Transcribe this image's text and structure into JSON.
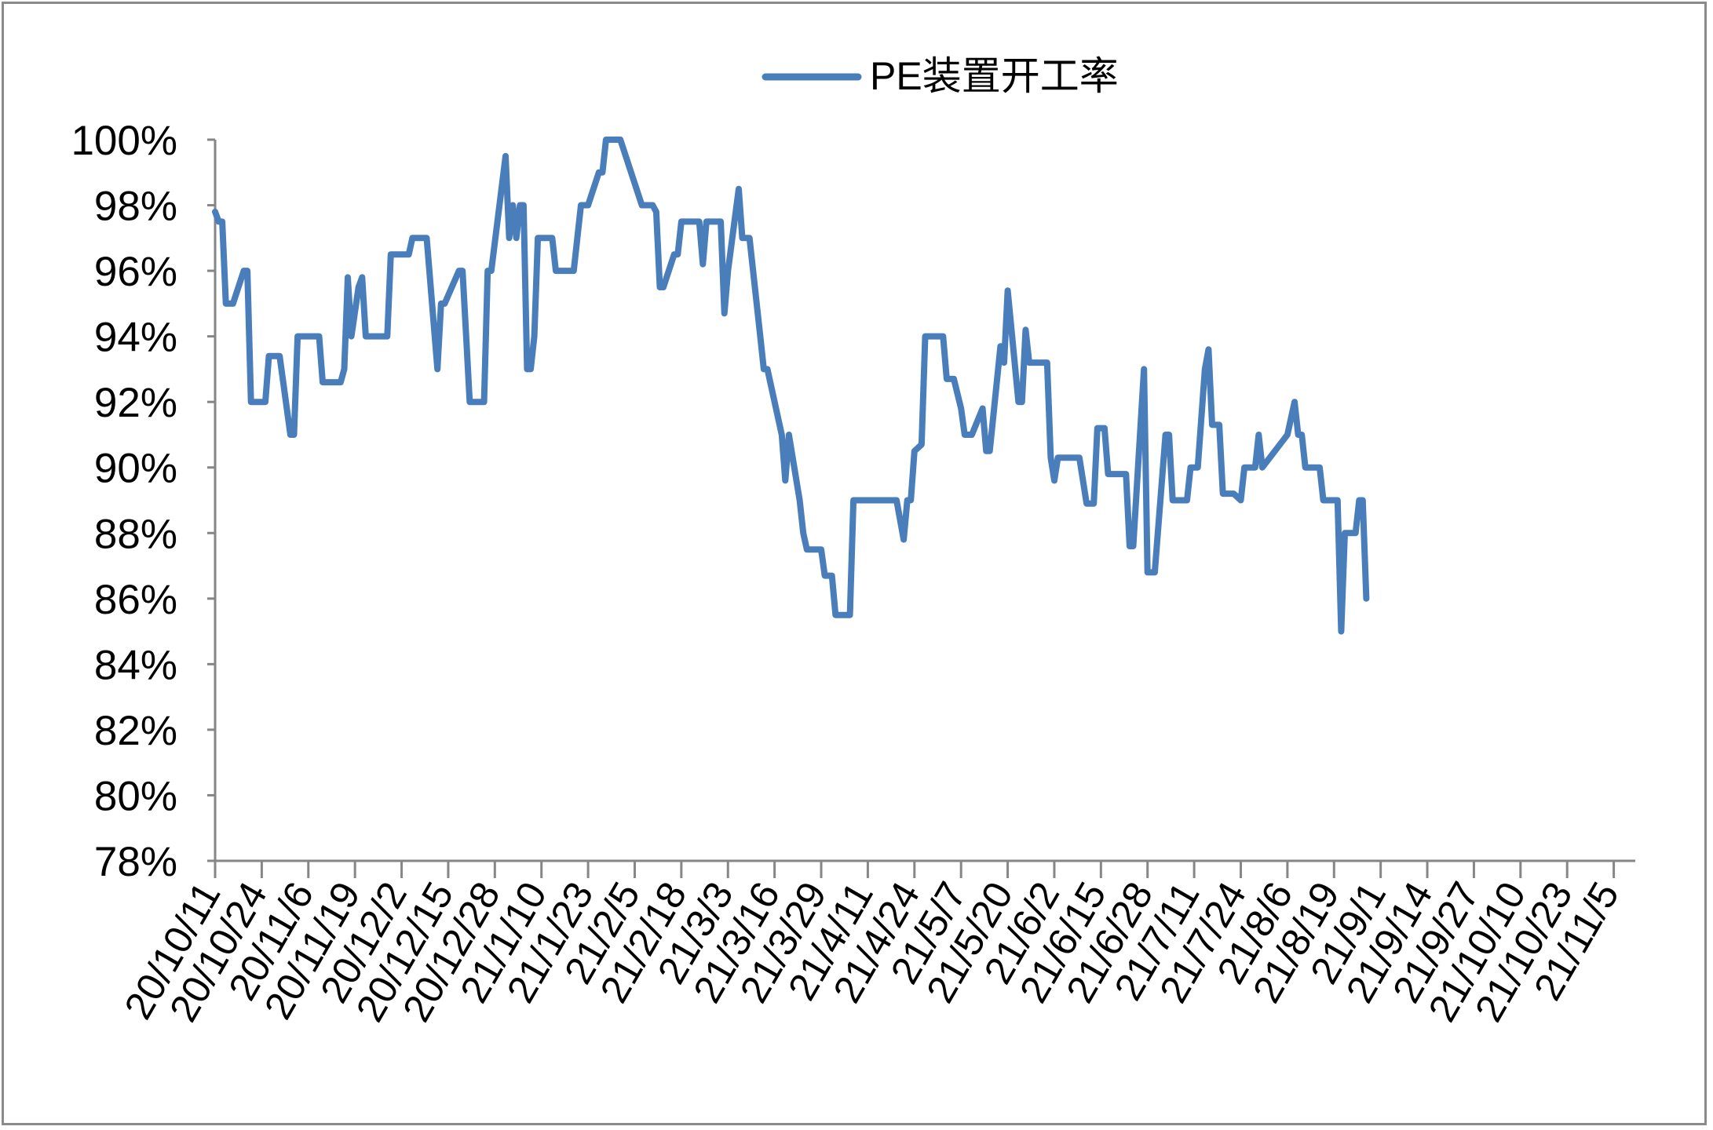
{
  "chart_data": {
    "type": "line",
    "title": "",
    "xlabel": "",
    "ylabel": "",
    "ylim": [
      0.78,
      1.0
    ],
    "yticks": [
      0.78,
      0.8,
      0.82,
      0.84,
      0.86,
      0.88,
      0.9,
      0.92,
      0.94,
      0.96,
      0.98,
      1.0
    ],
    "ytick_labels": [
      "78%",
      "80%",
      "82%",
      "84%",
      "86%",
      "88%",
      "90%",
      "92%",
      "94%",
      "96%",
      "98%",
      "100%"
    ],
    "x_range": [
      "2020-10-11",
      "2021-11-11"
    ],
    "xticks": [
      "2020-10-11",
      "2020-10-24",
      "2020-11-06",
      "2020-11-19",
      "2020-12-02",
      "2020-12-15",
      "2020-12-28",
      "2021-01-10",
      "2021-01-23",
      "2021-02-05",
      "2021-02-18",
      "2021-03-03",
      "2021-03-16",
      "2021-03-29",
      "2021-04-11",
      "2021-04-24",
      "2021-05-07",
      "2021-05-20",
      "2021-06-02",
      "2021-06-15",
      "2021-06-28",
      "2021-07-11",
      "2021-07-24",
      "2021-08-06",
      "2021-08-19",
      "2021-09-01",
      "2021-09-14",
      "2021-09-27",
      "2021-10-10",
      "2021-10-23",
      "2021-11-05"
    ],
    "xtick_labels": [
      "20/10/11",
      "20/10/24",
      "20/11/6",
      "20/11/19",
      "20/12/2",
      "20/12/15",
      "20/12/28",
      "21/1/10",
      "21/1/23",
      "21/2/5",
      "21/2/18",
      "21/3/3",
      "21/3/16",
      "21/3/29",
      "21/4/11",
      "21/4/24",
      "21/5/7",
      "21/5/20",
      "21/6/2",
      "21/6/15",
      "21/6/28",
      "21/7/11",
      "21/7/24",
      "21/8/6",
      "21/8/19",
      "21/9/1",
      "21/9/14",
      "21/9/27",
      "21/10/10",
      "21/10/23",
      "21/11/5"
    ],
    "grid": false,
    "legend_position": "top",
    "series": [
      {
        "name": "PE装置开工率",
        "color": "#4a7ebb",
        "points": [
          [
            "2020-10-11",
            0.978
          ],
          [
            "2020-10-12",
            0.975
          ],
          [
            "2020-10-13",
            0.975
          ],
          [
            "2020-10-14",
            0.95
          ],
          [
            "2020-10-16",
            0.95
          ],
          [
            "2020-10-19",
            0.96
          ],
          [
            "2020-10-20",
            0.96
          ],
          [
            "2020-10-21",
            0.92
          ],
          [
            "2020-10-25",
            0.92
          ],
          [
            "2020-10-26",
            0.934
          ],
          [
            "2020-10-29",
            0.934
          ],
          [
            "2020-11-01",
            0.91
          ],
          [
            "2020-11-02",
            0.91
          ],
          [
            "2020-11-03",
            0.94
          ],
          [
            "2020-11-09",
            0.94
          ],
          [
            "2020-11-10",
            0.926
          ],
          [
            "2020-11-15",
            0.926
          ],
          [
            "2020-11-16",
            0.93
          ],
          [
            "2020-11-17",
            0.958
          ],
          [
            "2020-11-18",
            0.94
          ],
          [
            "2020-11-20",
            0.955
          ],
          [
            "2020-11-21",
            0.958
          ],
          [
            "2020-11-22",
            0.94
          ],
          [
            "2020-11-28",
            0.94
          ],
          [
            "2020-11-29",
            0.965
          ],
          [
            "2020-12-04",
            0.965
          ],
          [
            "2020-12-05",
            0.97
          ],
          [
            "2020-12-09",
            0.97
          ],
          [
            "2020-12-12",
            0.93
          ],
          [
            "2020-12-13",
            0.95
          ],
          [
            "2020-12-14",
            0.95
          ],
          [
            "2020-12-18",
            0.96
          ],
          [
            "2020-12-19",
            0.96
          ],
          [
            "2020-12-20",
            0.94
          ],
          [
            "2020-12-21",
            0.92
          ],
          [
            "2020-12-25",
            0.92
          ],
          [
            "2020-12-26",
            0.96
          ],
          [
            "2020-12-27",
            0.96
          ],
          [
            "2020-12-31",
            0.995
          ],
          [
            "2021-01-01",
            0.97
          ],
          [
            "2021-01-02",
            0.98
          ],
          [
            "2021-01-03",
            0.97
          ],
          [
            "2021-01-04",
            0.98
          ],
          [
            "2021-01-05",
            0.98
          ],
          [
            "2021-01-06",
            0.93
          ],
          [
            "2021-01-07",
            0.93
          ],
          [
            "2021-01-08",
            0.94
          ],
          [
            "2021-01-09",
            0.97
          ],
          [
            "2021-01-13",
            0.97
          ],
          [
            "2021-01-14",
            0.96
          ],
          [
            "2021-01-19",
            0.96
          ],
          [
            "2021-01-20",
            0.97
          ],
          [
            "2021-01-21",
            0.98
          ],
          [
            "2021-01-23",
            0.98
          ],
          [
            "2021-01-26",
            0.99
          ],
          [
            "2021-01-27",
            0.99
          ],
          [
            "2021-01-28",
            1.0
          ],
          [
            "2021-02-01",
            1.0
          ],
          [
            "2021-02-07",
            0.98
          ],
          [
            "2021-02-10",
            0.98
          ],
          [
            "2021-02-11",
            0.978
          ],
          [
            "2021-02-12",
            0.955
          ],
          [
            "2021-02-13",
            0.955
          ],
          [
            "2021-02-16",
            0.965
          ],
          [
            "2021-02-17",
            0.965
          ],
          [
            "2021-02-18",
            0.975
          ],
          [
            "2021-02-23",
            0.975
          ],
          [
            "2021-02-24",
            0.962
          ],
          [
            "2021-02-25",
            0.975
          ],
          [
            "2021-03-01",
            0.975
          ],
          [
            "2021-03-02",
            0.947
          ],
          [
            "2021-03-03",
            0.96
          ],
          [
            "2021-03-06",
            0.985
          ],
          [
            "2021-03-07",
            0.97
          ],
          [
            "2021-03-09",
            0.97
          ],
          [
            "2021-03-12",
            0.94
          ],
          [
            "2021-03-13",
            0.93
          ],
          [
            "2021-03-14",
            0.93
          ],
          [
            "2021-03-18",
            0.91
          ],
          [
            "2021-03-19",
            0.896
          ],
          [
            "2021-03-20",
            0.91
          ],
          [
            "2021-03-23",
            0.89
          ],
          [
            "2021-03-24",
            0.88
          ],
          [
            "2021-03-25",
            0.875
          ],
          [
            "2021-03-29",
            0.875
          ],
          [
            "2021-03-30",
            0.867
          ],
          [
            "2021-04-01",
            0.867
          ],
          [
            "2021-04-02",
            0.855
          ],
          [
            "2021-04-06",
            0.855
          ],
          [
            "2021-04-07",
            0.89
          ],
          [
            "2021-04-19",
            0.89
          ],
          [
            "2021-04-21",
            0.878
          ],
          [
            "2021-04-22",
            0.89
          ],
          [
            "2021-04-23",
            0.89
          ],
          [
            "2021-04-24",
            0.905
          ],
          [
            "2021-04-26",
            0.907
          ],
          [
            "2021-04-27",
            0.94
          ],
          [
            "2021-05-02",
            0.94
          ],
          [
            "2021-05-03",
            0.927
          ],
          [
            "2021-05-05",
            0.927
          ],
          [
            "2021-05-07",
            0.918
          ],
          [
            "2021-05-08",
            0.91
          ],
          [
            "2021-05-10",
            0.91
          ],
          [
            "2021-05-13",
            0.918
          ],
          [
            "2021-05-14",
            0.905
          ],
          [
            "2021-05-15",
            0.905
          ],
          [
            "2021-05-18",
            0.937
          ],
          [
            "2021-05-19",
            0.932
          ],
          [
            "2021-05-20",
            0.954
          ],
          [
            "2021-05-23",
            0.92
          ],
          [
            "2021-05-24",
            0.92
          ],
          [
            "2021-05-25",
            0.942
          ],
          [
            "2021-05-26",
            0.932
          ],
          [
            "2021-05-31",
            0.932
          ],
          [
            "2021-06-01",
            0.903
          ],
          [
            "2021-06-02",
            0.896
          ],
          [
            "2021-06-03",
            0.903
          ],
          [
            "2021-06-09",
            0.903
          ],
          [
            "2021-06-11",
            0.889
          ],
          [
            "2021-06-13",
            0.889
          ],
          [
            "2021-06-14",
            0.912
          ],
          [
            "2021-06-16",
            0.912
          ],
          [
            "2021-06-17",
            0.898
          ],
          [
            "2021-06-22",
            0.898
          ],
          [
            "2021-06-23",
            0.876
          ],
          [
            "2021-06-24",
            0.876
          ],
          [
            "2021-06-27",
            0.93
          ],
          [
            "2021-06-28",
            0.868
          ],
          [
            "2021-06-30",
            0.868
          ],
          [
            "2021-07-03",
            0.91
          ],
          [
            "2021-07-04",
            0.91
          ],
          [
            "2021-07-05",
            0.89
          ],
          [
            "2021-07-09",
            0.89
          ],
          [
            "2021-07-10",
            0.9
          ],
          [
            "2021-07-12",
            0.9
          ],
          [
            "2021-07-14",
            0.93
          ],
          [
            "2021-07-15",
            0.936
          ],
          [
            "2021-07-16",
            0.913
          ],
          [
            "2021-07-18",
            0.913
          ],
          [
            "2021-07-19",
            0.892
          ],
          [
            "2021-07-22",
            0.892
          ],
          [
            "2021-07-24",
            0.89
          ],
          [
            "2021-07-25",
            0.9
          ],
          [
            "2021-07-28",
            0.9
          ],
          [
            "2021-07-29",
            0.91
          ],
          [
            "2021-07-30",
            0.9
          ],
          [
            "2021-08-06",
            0.91
          ],
          [
            "2021-08-08",
            0.92
          ],
          [
            "2021-08-09",
            0.91
          ],
          [
            "2021-08-10",
            0.91
          ],
          [
            "2021-08-11",
            0.9
          ],
          [
            "2021-08-15",
            0.9
          ],
          [
            "2021-08-16",
            0.89
          ],
          [
            "2021-08-20",
            0.89
          ],
          [
            "2021-08-21",
            0.85
          ],
          [
            "2021-08-22",
            0.88
          ],
          [
            "2021-08-25",
            0.88
          ],
          [
            "2021-08-26",
            0.89
          ],
          [
            "2021-08-27",
            0.89
          ],
          [
            "2021-08-28",
            0.86
          ]
        ]
      }
    ]
  }
}
